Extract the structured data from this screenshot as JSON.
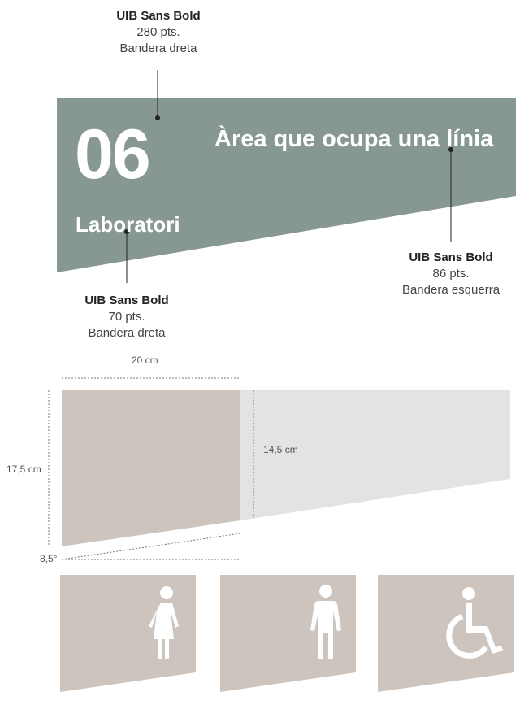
{
  "colors": {
    "sign_green": "#879893",
    "taupe": "#cdc5bd",
    "light_panel": "#e1e4e2",
    "white": "#ffffff"
  },
  "callouts": {
    "number_font": {
      "font": "UIB Sans Bold",
      "size": "280 pts.",
      "align": "Bandera dreta"
    },
    "label_font": {
      "font": "UIB Sans Bold",
      "size": "70 pts.",
      "align": "Bandera dreta"
    },
    "title_font": {
      "font": "UIB Sans Bold",
      "size": "86 pts.",
      "align": "Bandera esquerra"
    }
  },
  "sign": {
    "number": "06",
    "label": "Laboratori",
    "title": "Àrea que ocupa una línia"
  },
  "dimensions": {
    "width": "20 cm",
    "height": "17,5 cm",
    "inner_height": "14,5 cm",
    "angle": "8,5°"
  },
  "pictograms": [
    {
      "icon": "woman-icon"
    },
    {
      "icon": "man-icon"
    },
    {
      "icon": "wheelchair-icon"
    }
  ]
}
